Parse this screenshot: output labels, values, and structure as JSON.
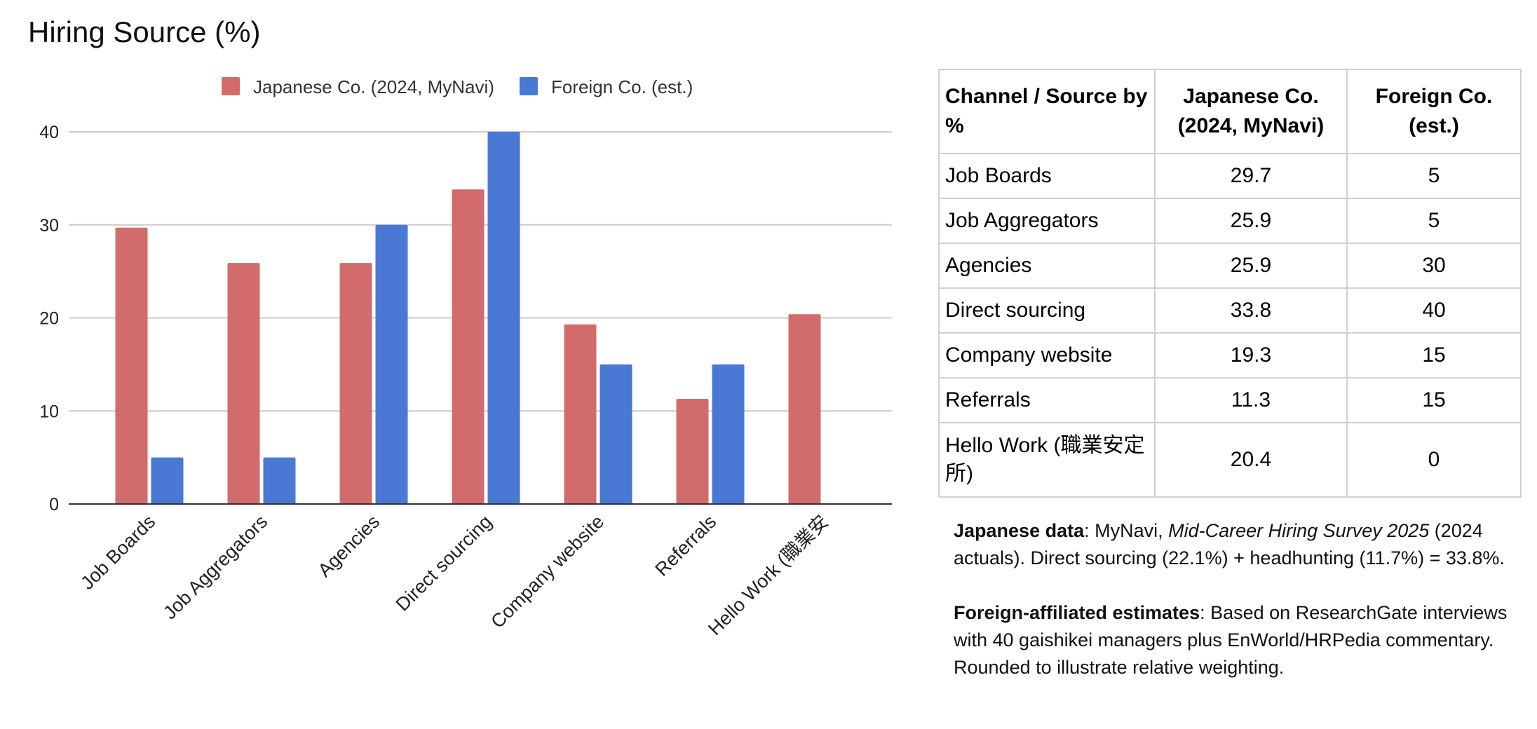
{
  "chart_data": {
    "type": "bar",
    "title": "Hiring Source (%)",
    "categories": [
      "Job Boards",
      "Job Aggregators",
      "Agencies",
      "Direct sourcing",
      "Company website",
      "Referrals",
      "Hello Work (職業安"
    ],
    "series": [
      {
        "name": "Japanese Co. (2024, MyNavi)",
        "color": "#d26c6a",
        "values": [
          29.7,
          25.9,
          25.9,
          33.8,
          19.3,
          11.3,
          20.4
        ]
      },
      {
        "name": "Foreign Co. (est.)",
        "color": "#4a78d5",
        "values": [
          5,
          5,
          30,
          40,
          15,
          15,
          0
        ]
      }
    ],
    "ylim": [
      0,
      40
    ],
    "yticks": [
      0,
      10,
      20,
      30,
      40
    ],
    "legend_position": "top",
    "grid": true,
    "xlabel": "",
    "ylabel": ""
  },
  "table": {
    "headers": [
      "Channel / Source by %",
      "Japanese Co. (2024, MyNavi)",
      "Foreign Co. (est.)"
    ],
    "rows": [
      [
        "Job Boards",
        "29.7",
        "5"
      ],
      [
        "Job Aggregators",
        "25.9",
        "5"
      ],
      [
        "Agencies",
        "25.9",
        "30"
      ],
      [
        "Direct sourcing",
        "33.8",
        "40"
      ],
      [
        "Company website",
        "19.3",
        "15"
      ],
      [
        "Referrals",
        "11.3",
        "15"
      ],
      [
        "Hello Work (職業安定所)",
        "20.4",
        "0"
      ]
    ]
  },
  "notes": {
    "japanese_label": "Japanese data",
    "japanese_sep": ": MyNavi, ",
    "japanese_source": "Mid-Career Hiring Survey 2025",
    "japanese_text": " (2024 actuals). Direct sourcing (22.1%) + headhunting (11.7%) = 33.8%.",
    "foreign_label": "Foreign-affiliated estimates",
    "foreign_text": ": Based on ResearchGate interviews with 40 gaishikei managers plus EnWorld/HRPedia commentary. Rounded to illustrate relative weighting."
  }
}
